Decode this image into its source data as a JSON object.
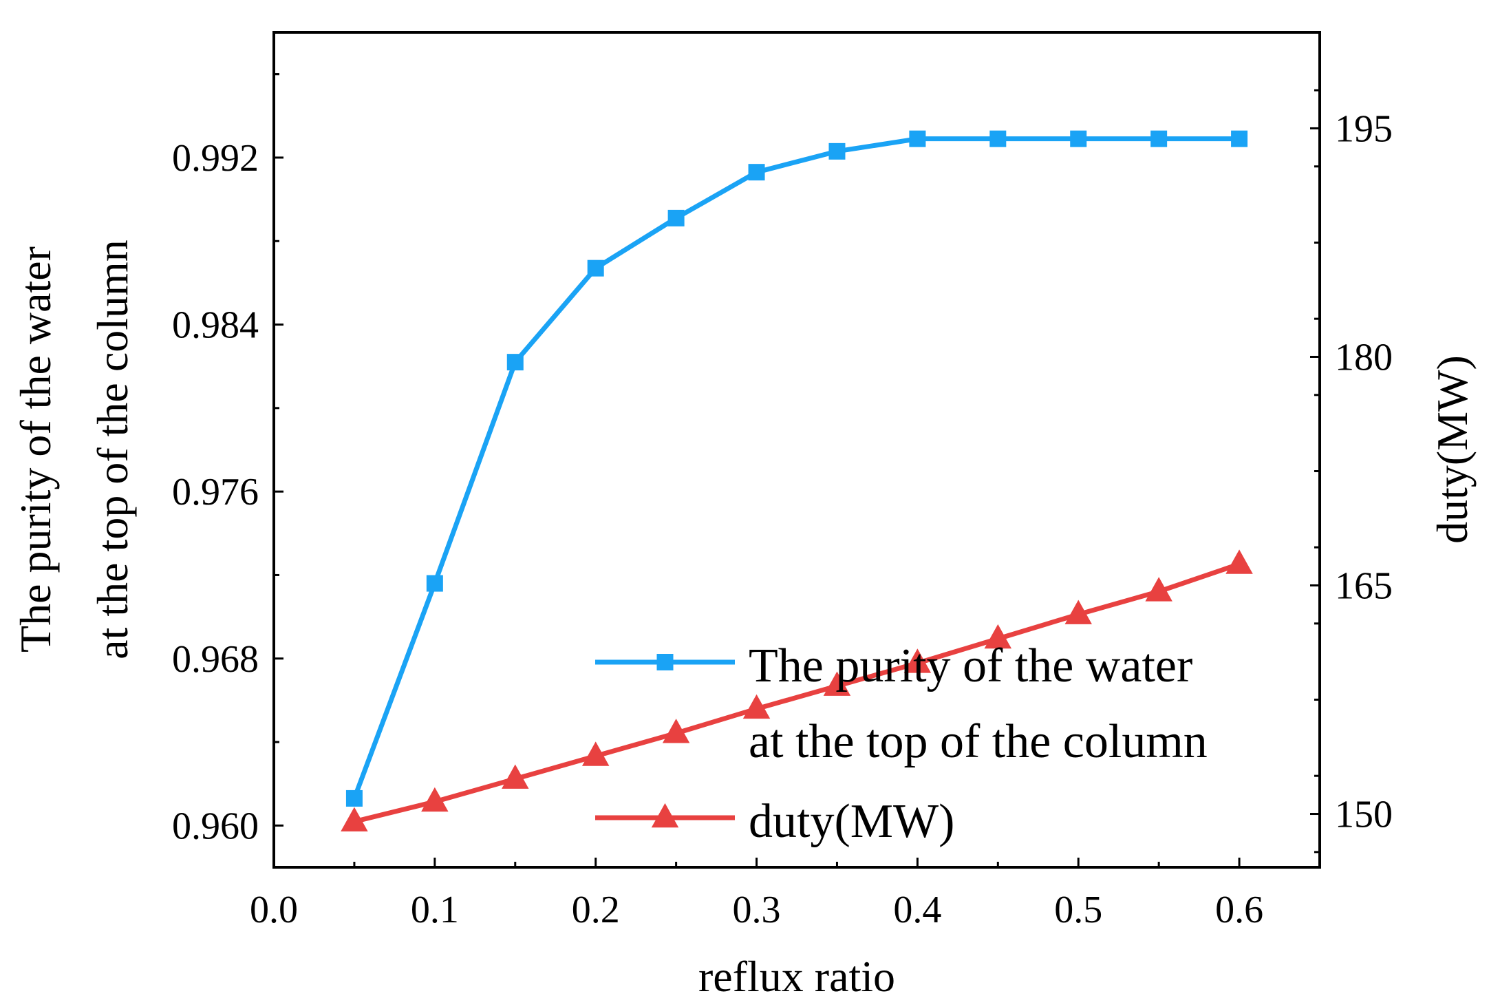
{
  "chart_data": {
    "type": "line",
    "xlabel": "reflux ratio",
    "ylabel_left_lines": [
      "The purity of the water",
      "at the top of the column"
    ],
    "ylabel_right": "duty(MW)",
    "x_ticks": [
      "0.0",
      "0.1",
      "0.2",
      "0.3",
      "0.4",
      "0.5",
      "0.6"
    ],
    "y_left_ticks": [
      "0.960",
      "0.968",
      "0.976",
      "0.984",
      "0.992"
    ],
    "y_right_ticks": [
      "150",
      "165",
      "180",
      "195"
    ],
    "xlim": [
      0.0,
      0.65
    ],
    "ylim_left": [
      0.958,
      0.998
    ],
    "ylim_right": [
      146.5,
      201.3
    ],
    "x": [
      0.05,
      0.1,
      0.15,
      0.2,
      0.25,
      0.3,
      0.35,
      0.4,
      0.45,
      0.5,
      0.55,
      0.6
    ],
    "series": [
      {
        "name": "The purity of the water at the top of the column",
        "legend_lines": [
          "The purity of the water",
          "at the top of the column"
        ],
        "axis": "left",
        "marker": "square",
        "color": "#1aa3f5",
        "values": [
          0.9613,
          0.9716,
          0.9822,
          0.9867,
          0.9891,
          0.9913,
          0.9923,
          0.9929,
          0.9929,
          0.9929,
          0.9929,
          0.9929
        ]
      },
      {
        "name": "duty(MW)",
        "legend_lines": [
          "duty(MW)"
        ],
        "axis": "right",
        "marker": "triangle",
        "color": "#e84140",
        "values": [
          149.5,
          150.8,
          152.3,
          153.8,
          155.3,
          156.9,
          158.4,
          159.9,
          161.5,
          163.1,
          164.6,
          166.4
        ]
      }
    ],
    "legend_position": "bottom-right"
  }
}
